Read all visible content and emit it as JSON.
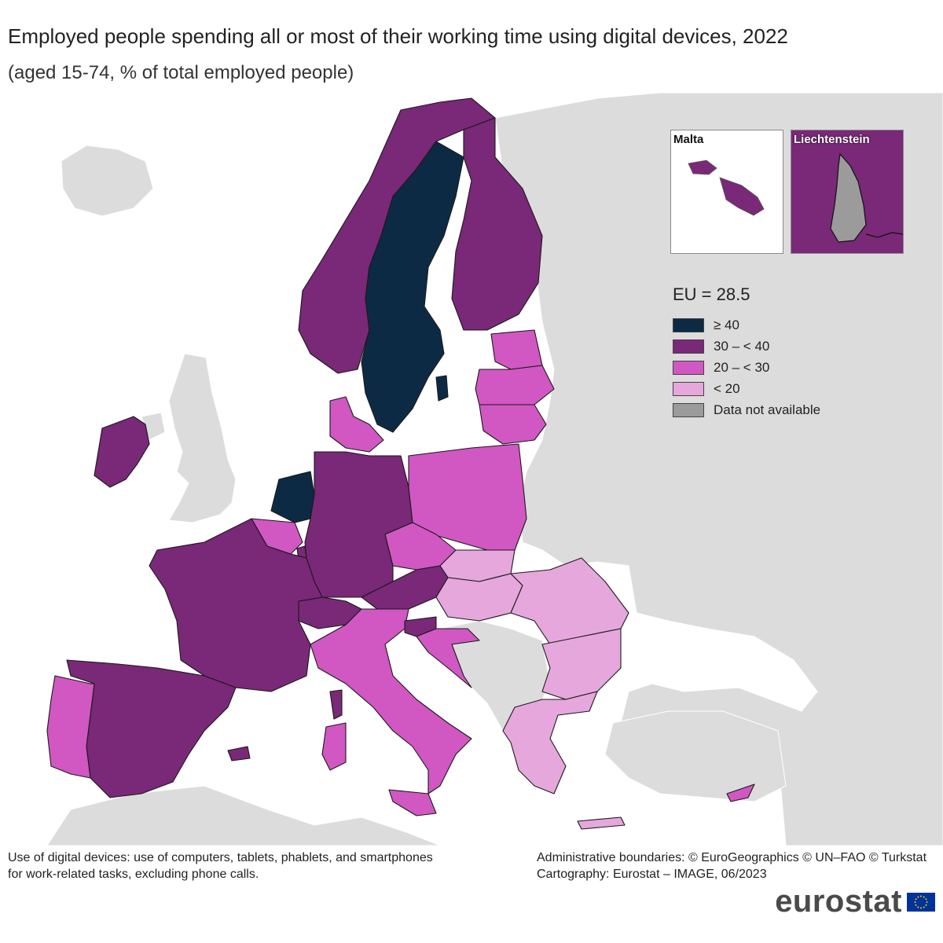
{
  "title": "Employed people spending all or most of their working time using digital devices, 2022",
  "subtitle": "(aged 15-74, % of total employed people)",
  "colors": {
    "class_ge40": "#0d2a45",
    "class_30_40": "#7a2878",
    "class_20_30": "#d157c3",
    "class_lt20": "#e6a7dc",
    "class_na": "#9b9b9b",
    "non_eu": "#dcdcdc",
    "sea": "#ffffff",
    "border": "#222222"
  },
  "legend": {
    "title": "EU = 28.5",
    "items": [
      {
        "label": "≥ 40",
        "color": "#0d2a45"
      },
      {
        "label": "30 – < 40",
        "color": "#7a2878"
      },
      {
        "label": "20 – < 30",
        "color": "#d157c3"
      },
      {
        "label": "< 20",
        "color": "#e6a7dc"
      },
      {
        "label": "Data not available",
        "color": "#9b9b9b"
      }
    ]
  },
  "insets": {
    "malta_label": "Malta",
    "liechtenstein_label": "Liechtenstein"
  },
  "map_classes": {
    "ge40": [
      "Sweden",
      "Netherlands"
    ],
    "30_40": [
      "Norway",
      "Finland",
      "Ireland",
      "Germany",
      "France",
      "Spain",
      "Austria",
      "Switzerland",
      "Slovenia",
      "Luxembourg",
      "Malta",
      "Liechtenstein (surroundings)"
    ],
    "20_30": [
      "Denmark",
      "Estonia",
      "Latvia",
      "Lithuania",
      "Poland",
      "Czechia",
      "Belgium",
      "Italy",
      "Portugal",
      "Croatia",
      "Cyprus"
    ],
    "lt20": [
      "Slovakia",
      "Hungary",
      "Romania",
      "Bulgaria",
      "Greece"
    ],
    "na": [
      "Liechtenstein"
    ]
  },
  "footnote": {
    "line1": "Use of digital devices: use of computers, tablets, phablets, and smartphones",
    "line2": "for work-related tasks, excluding phone calls."
  },
  "credits": {
    "line1": "Administrative boundaries: © EuroGeographics © UN–FAO © Turkstat",
    "line2": "Cartography: Eurostat – IMAGE, 06/2023"
  },
  "logo": "eurostat"
}
